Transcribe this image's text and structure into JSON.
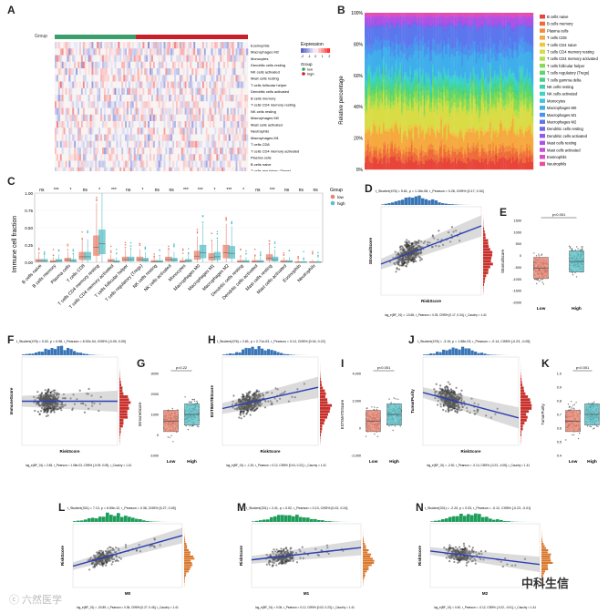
{
  "panels": {
    "A": "A",
    "B": "B",
    "C": "C",
    "D": "D",
    "E": "E",
    "F": "F",
    "G": "G",
    "H": "H",
    "I": "I",
    "J": "J",
    "K": "K",
    "L": "L",
    "M": "M",
    "N": "N"
  },
  "colors": {
    "low": "#E8836F",
    "high": "#5BC0C7",
    "group_low": "#3A9F6B",
    "group_high": "#C8202A",
    "fit": "#2B3FB5",
    "hist_blue": "#3A76B7",
    "hist_red": "#C8302C",
    "hist_green": "#1E9E5A",
    "hist_orange": "#D9772B"
  },
  "watermarks": {
    "left": "ⓒ 六然医学",
    "right": "中科生信"
  },
  "panelA": {
    "group_label": "Group",
    "legend_title": "Expression",
    "legend_ticks": [
      "2",
      "1",
      "0",
      "-1",
      "-2"
    ],
    "legend_group_title": "Group",
    "legend_groups": [
      "low",
      "high"
    ],
    "rows": [
      "Eosinophils",
      "Macrophages M2",
      "Monocytes",
      "Dendritic cells resting",
      "NK cells activated",
      "Mast cells resting",
      "T cells follicular helper",
      "Dendritic cells activated",
      "B cells memory",
      "T cells CD4 memory resting",
      "NK cells resting",
      "Macrophages M0",
      "Mast cells activated",
      "Neutrophils",
      "Macrophages M1",
      "T cells CD8",
      "T cells CD4 memory activated",
      "Plasma cells",
      "B cells naive",
      "T cells regulatory (Tregs)"
    ]
  },
  "panelB": {
    "ylabel": "Relative percentage",
    "yticks": [
      "100%",
      "80%",
      "60%",
      "40%",
      "20%",
      "0%"
    ],
    "legend": [
      {
        "name": "B cells naive",
        "color": "#E8443A"
      },
      {
        "name": "B cells memory",
        "color": "#EE6A3A"
      },
      {
        "name": "Plasma cells",
        "color": "#F38B3C"
      },
      {
        "name": "T cells CD8",
        "color": "#F5A93E"
      },
      {
        "name": "T cells CD4 naive",
        "color": "#EEC640"
      },
      {
        "name": "T cells CD4 memory resting",
        "color": "#D9DC45"
      },
      {
        "name": "T cells CD4 memory activated",
        "color": "#B3E04A"
      },
      {
        "name": "T cells follicular helper",
        "color": "#86DB55"
      },
      {
        "name": "T cells regulatory (Tregs)",
        "color": "#5ED66A"
      },
      {
        "name": "T cells gamma delta",
        "color": "#45D288"
      },
      {
        "name": "NK cells resting",
        "color": "#3ED3A8"
      },
      {
        "name": "NK cells activated",
        "color": "#3CD3C8"
      },
      {
        "name": "Monocytes",
        "color": "#3CC7E0"
      },
      {
        "name": "Macrophages M0",
        "color": "#3FAEEB"
      },
      {
        "name": "Macrophages M1",
        "color": "#4A92EE"
      },
      {
        "name": "Macrophages M2",
        "color": "#5C77EE"
      },
      {
        "name": "Dendritic cells resting",
        "color": "#7464EC"
      },
      {
        "name": "Dendritic cells activated",
        "color": "#9158EA"
      },
      {
        "name": "Mast cells resting",
        "color": "#AD52E5"
      },
      {
        "name": "Mast cells activated",
        "color": "#C64FD8"
      },
      {
        "name": "Eosinophils",
        "color": "#DA4EC2"
      },
      {
        "name": "Neutrophils",
        "color": "#E84C9E"
      }
    ]
  },
  "chart_data": [
    {
      "type": "bar",
      "panel": "C",
      "chart_kind": "boxplot",
      "ylabel": "Immune cell fraction",
      "yticks": [
        "0.00",
        "0.25",
        "0.50",
        "0.75",
        "1.00"
      ],
      "ylim": [
        0,
        1
      ],
      "legend_title": "Group",
      "legend": [
        "low",
        "high"
      ],
      "categories": [
        "B cells naive",
        "B cells memory",
        "Plasma cells",
        "T cells CD8",
        "T cells CD4 memory resting",
        "T cells CD4 memory activated",
        "T cells follicular helper",
        "T cells regulatory (Tregs)",
        "NK cells resting",
        "NK cells activated",
        "Monocytes",
        "Macrophages M0",
        "Macrophages M1",
        "Macrophages M2",
        "Dendritic cells resting",
        "Dendritic cells activated",
        "Mast cells resting",
        "Mast cells activated",
        "Eosinophils",
        "Neutrophils"
      ],
      "significance": [
        "ns",
        "***",
        "*",
        "ns",
        "*",
        "***",
        "ns",
        "*",
        "ns",
        "ns",
        "***",
        "***",
        "*",
        "***",
        "*",
        "ns",
        "***",
        "ns",
        "ns",
        "ns"
      ],
      "series": [
        {
          "name": "low",
          "median": [
            0.02,
            0.01,
            0.03,
            0.08,
            0.22,
            0.02,
            0.04,
            0.04,
            0.01,
            0.04,
            0.01,
            0.09,
            0.07,
            0.14,
            0.01,
            0.01,
            0.06,
            0.01,
            0.0,
            0.0
          ]
        },
        {
          "name": "high",
          "median": [
            0.02,
            0.02,
            0.02,
            0.08,
            0.27,
            0.01,
            0.04,
            0.03,
            0.01,
            0.03,
            0.02,
            0.14,
            0.08,
            0.13,
            0.01,
            0.01,
            0.04,
            0.01,
            0.0,
            0.0
          ]
        }
      ]
    },
    {
      "type": "scatter",
      "panel": "D",
      "xlabel": "RiskScore",
      "ylabel": "StromalScore",
      "stats": "t_Student(476) = 5.81, p = 1.16e-08, r_Pearson = 0.26, CI95% [0.17, 0.34]",
      "footer": "log_e(BF_01) = -13.68, r_Pearson = 0.25, CI95% [0.17, 0.34], r_Cauchy = 1.41"
    },
    {
      "type": "bar",
      "panel": "E",
      "chart_kind": "boxplot",
      "categories": [
        "Low",
        "High"
      ],
      "ylabel": "StromalScore",
      "pvalue": "p<0.001",
      "yticks": [
        "1500",
        "1000",
        "500",
        "0",
        "-500",
        "-1000",
        "-1500",
        "-2000"
      ]
    },
    {
      "type": "scatter",
      "panel": "F",
      "xlabel": "RiskScore",
      "ylabel": "ImmuneScore",
      "stats": "t_Student(476) = 0.02, p = 0.98, r_Pearson = 8.92e-04, CI95% [-0.09, 0.09]",
      "footer": "log_e(BF_01) = 2.65, r_Pearson = 1.08e-03, CI95% [-0.09, 0.09], r_Cauchy = 1.41"
    },
    {
      "type": "bar",
      "panel": "G",
      "chart_kind": "boxplot",
      "categories": [
        "Low",
        "High"
      ],
      "ylabel": "ImmuneScore",
      "pvalue": "p=0.22",
      "yticks": [
        "3000",
        "2000",
        "1000",
        "0",
        "-1000"
      ]
    },
    {
      "type": "scatter",
      "panel": "H",
      "xlabel": "RiskScore",
      "ylabel": "ESTIMATEScore",
      "stats": "t_Student(476) = 2.81, p = 2.71e-03, r_Pearson = 0.13, CI95% [0.04, 0.22]",
      "footer": "log_e(BF_01) = -1.30, r_Pearson = 0.12, CI95% [0.04, 0.22], r_Cauchy = 1.41"
    },
    {
      "type": "bar",
      "panel": "I",
      "chart_kind": "boxplot",
      "categories": [
        "Low",
        "High"
      ],
      "ylabel": "ESTIMATEScore",
      "pvalue": "p<0.001",
      "yticks": [
        "4,000",
        "2,000",
        "0",
        "-2,000"
      ]
    },
    {
      "type": "scatter",
      "panel": "J",
      "xlabel": "RiskScore",
      "ylabel": "TumorPurity",
      "stats": "t_Student(476) = -3.19, p = 1.58e-03, r_Pearson = -0.14, CI95% [-0.23, -0.05]",
      "footer": "log_e(BF_01) = -2.30, r_Pearson = -0.14, CI95% [-0.23, -0.05], r_Cauchy = 1.41"
    },
    {
      "type": "bar",
      "panel": "K",
      "chart_kind": "boxplot",
      "categories": [
        "Low",
        "High"
      ],
      "ylabel": "TumorPurity",
      "pvalue": "p<0.001",
      "yticks": [
        "1.0",
        "0.9",
        "0.8",
        "0.7",
        "0.6",
        "0.5",
        "0.4"
      ]
    },
    {
      "type": "scatter",
      "panel": "L",
      "xlabel": "M0",
      "ylabel": "RiskScore",
      "stats": "t_Student(331) = 7.13, p = 6.59e-12, r_Pearson = 0.36, CI95% [0.27, 0.45]",
      "footer": "log_e(BF_01) = -20.89, r_Pearson = 0.36, CI95% [0.27, 0.46], r_Cauchy = 1.41"
    },
    {
      "type": "scatter",
      "panel": "M",
      "xlabel": "M1",
      "ylabel": "RiskScore",
      "stats": "t_Student(331) = 2.41, p = 0.02, r_Pearson = 0.13, CI95% [0.02, 0.24]",
      "footer": "log_e(BF_01) = 0.06, r_Pearson = 0.12, CI95% [0.02, 0.23], r_Cauchy = 1.41"
    },
    {
      "type": "scatter",
      "panel": "N",
      "xlabel": "M2",
      "ylabel": "RiskScore",
      "stats": "t_Student(331) = -2.20, p = 0.03, r_Pearson = -0.12, CI95% [-0.23, -0.01]",
      "footer": "log_e(BF_01) = 0.40, r_Pearson = -0.12, CI95% [-0.22, -0.01], r_Cauchy = 1.41"
    }
  ]
}
